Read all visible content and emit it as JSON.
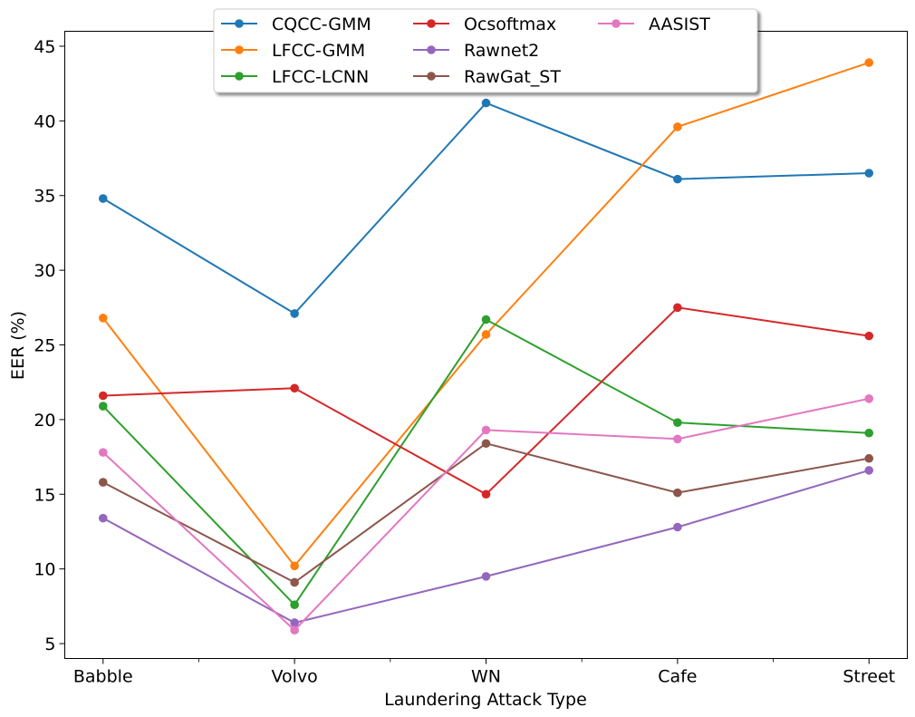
{
  "chart_data": {
    "type": "line",
    "title": "",
    "xlabel": "Laundering Attack Type",
    "ylabel": "EER (%)",
    "categories": [
      "Babble",
      "Volvo",
      "WN",
      "Cafe",
      "Street"
    ],
    "yticks": [
      5,
      10,
      15,
      20,
      25,
      30,
      35,
      40,
      45
    ],
    "ylim": [
      4,
      46
    ],
    "xlim": [
      -0.2,
      4.2
    ],
    "grid": false,
    "legend_position": "top-center",
    "series": [
      {
        "name": "CQCC-GMM",
        "color": "#1f77b4",
        "values": [
          34.8,
          27.1,
          41.2,
          36.1,
          36.5
        ]
      },
      {
        "name": "LFCC-GMM",
        "color": "#ff7f0e",
        "values": [
          26.8,
          10.2,
          25.7,
          39.6,
          43.9
        ]
      },
      {
        "name": "LFCC-LCNN",
        "color": "#2ca02c",
        "values": [
          20.9,
          7.6,
          26.7,
          19.8,
          19.1
        ]
      },
      {
        "name": "Ocsoftmax",
        "color": "#d62728",
        "values": [
          21.6,
          22.1,
          15.0,
          27.5,
          25.6
        ]
      },
      {
        "name": "Rawnet2",
        "color": "#9467bd",
        "values": [
          13.4,
          6.4,
          9.5,
          12.8,
          16.6
        ]
      },
      {
        "name": "RawGat_ST",
        "color": "#8c564b",
        "values": [
          15.8,
          9.1,
          18.4,
          15.1,
          17.4
        ]
      },
      {
        "name": "AASIST",
        "color": "#e377c2",
        "values": [
          17.8,
          5.9,
          19.3,
          18.7,
          21.4
        ]
      }
    ]
  }
}
